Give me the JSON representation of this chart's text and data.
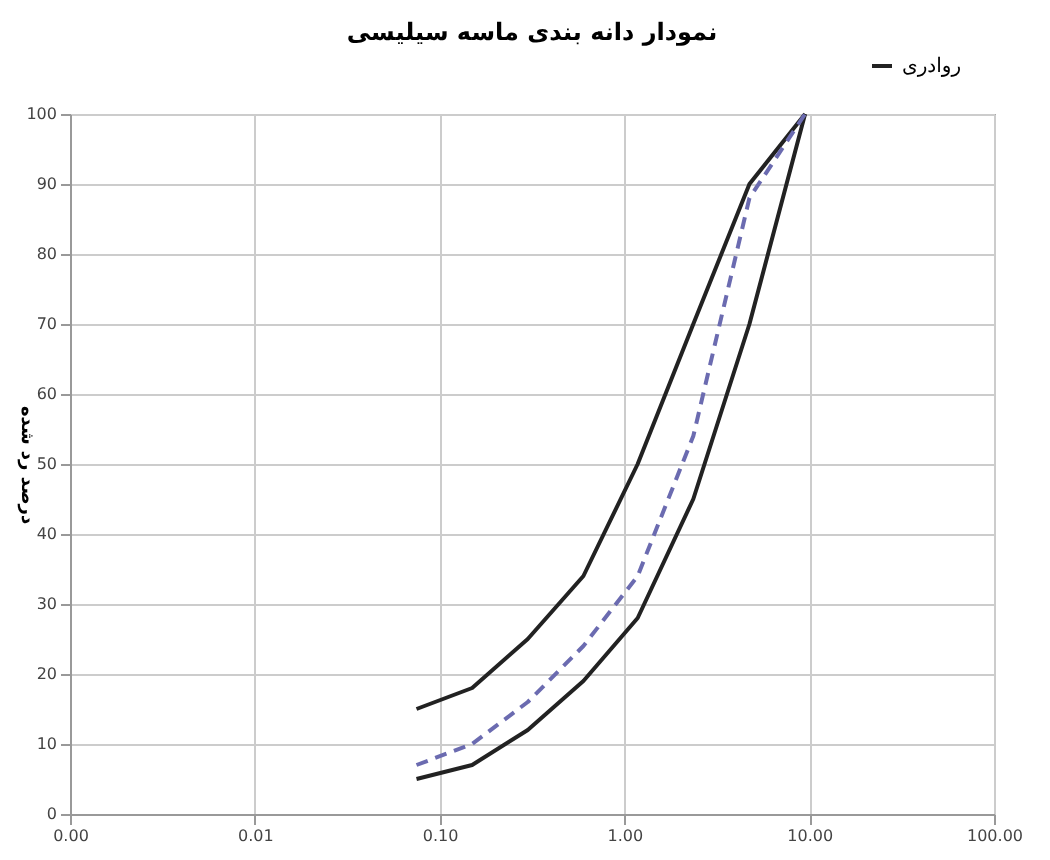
{
  "chart_data": {
    "type": "line",
    "title": "نمودار دانه بندی ماسه سیلیسی",
    "ylabel": "درصد رد شده",
    "x": [
      0.075,
      0.15,
      0.3,
      0.6,
      1.18,
      2.36,
      4.75,
      9.5
    ],
    "series": [
      {
        "name": "روادری",
        "color": "#222222",
        "values": [
          15,
          18,
          25,
          34,
          50,
          70,
          90,
          100
        ]
      },
      {
        "color": "#222222",
        "values": [
          5,
          7,
          12,
          19,
          28,
          45,
          70,
          100
        ]
      },
      {
        "color": "#6b6bb0",
        "line_style": "dashed",
        "values": [
          7,
          10,
          16,
          24,
          34,
          54,
          88,
          100
        ]
      }
    ],
    "log": "x",
    "xlim": [
      0.001,
      100
    ],
    "xticks": [
      {
        "value": 0.001,
        "label": "0.00"
      },
      {
        "value": 0.01,
        "label": "0.01"
      },
      {
        "value": 0.1,
        "label": "0.10"
      },
      {
        "value": 1,
        "label": "1.00"
      },
      {
        "value": 10,
        "label": "10.00"
      },
      {
        "value": 100,
        "label": "100.00"
      }
    ],
    "ylim": [
      0,
      100
    ],
    "yticks": [
      0,
      10,
      20,
      30,
      40,
      50,
      60,
      70,
      80,
      90,
      100
    ],
    "grid": true,
    "legend": "top right",
    "marker": "none",
    "line_style": "solid"
  }
}
